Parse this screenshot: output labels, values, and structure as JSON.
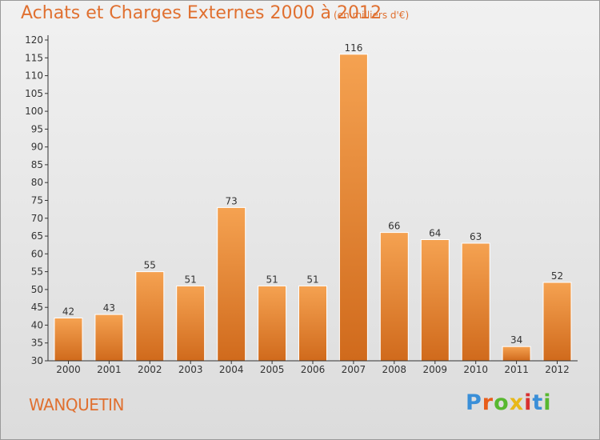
{
  "header": {
    "title": "Achats et Charges Externes 2000 à 2012",
    "subtitle": "(en milliers d'€)"
  },
  "footer": {
    "commune": "WANQUETIN",
    "logo": {
      "letters": [
        "P",
        "r",
        "o",
        "x",
        "i",
        "t",
        "i"
      ],
      "colors": [
        "#3a8fd8",
        "#e85d1a",
        "#58b830",
        "#e8b818",
        "#d83030",
        "#3a8fd8",
        "#58b830"
      ]
    }
  },
  "colors": {
    "title": "#e07030",
    "bar_light": "#f5a251",
    "bar_dark": "#d06a1c",
    "axis": "#333333"
  },
  "chart_data": {
    "type": "bar",
    "title": "Achats et Charges Externes 2000 à 2012",
    "subtitle": "(en milliers d'€)",
    "xlabel": "",
    "ylabel": "",
    "categories": [
      "2000",
      "2001",
      "2002",
      "2003",
      "2004",
      "2005",
      "2006",
      "2007",
      "2008",
      "2009",
      "2010",
      "2011",
      "2012"
    ],
    "values": [
      42,
      43,
      55,
      51,
      73,
      51,
      51,
      116,
      66,
      64,
      63,
      34,
      52
    ],
    "ylim": [
      30,
      120
    ],
    "ytick_step": 5,
    "grid": false,
    "legend": "none"
  }
}
